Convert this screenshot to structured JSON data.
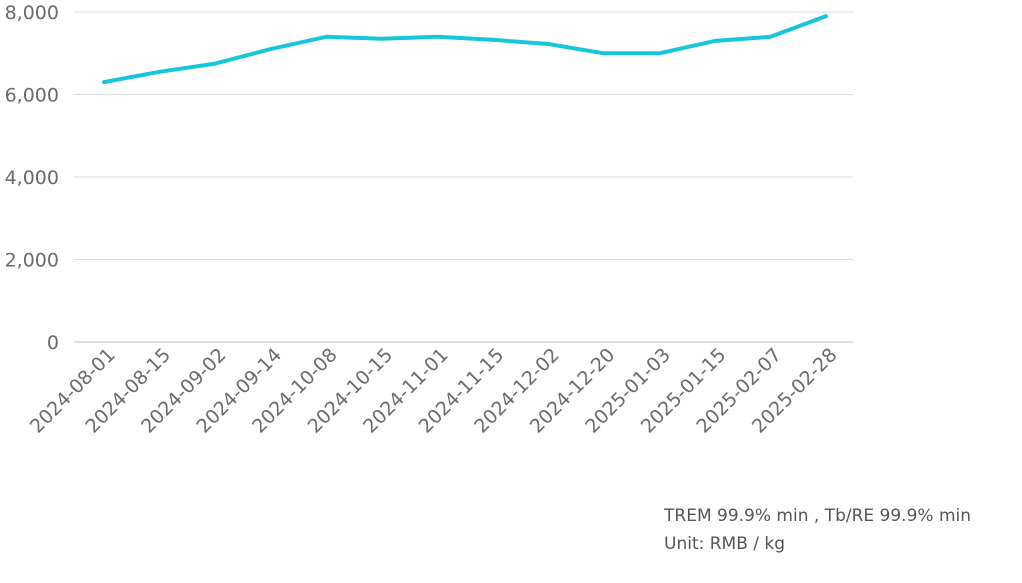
{
  "chart_data": {
    "type": "line",
    "title": "",
    "xlabel": "",
    "ylabel": "",
    "categories": [
      "2024-08-01",
      "2024-08-15",
      "2024-09-02",
      "2024-09-14",
      "2024-10-08",
      "2024-10-15",
      "2024-11-01",
      "2024-11-15",
      "2024-12-02",
      "2024-12-20",
      "2025-01-03",
      "2025-01-15",
      "2025-02-07",
      "2025-02-28"
    ],
    "series": [
      {
        "values": [
          6300,
          6550,
          6750,
          7100,
          7400,
          7350,
          7400,
          7325,
          7225,
          7000,
          7000,
          7300,
          7400,
          7900
        ],
        "color": "#16c6dc"
      }
    ],
    "ylim": [
      0,
      8000
    ],
    "yticks": [
      0,
      2000,
      4000,
      6000,
      8000
    ],
    "ytick_labels": [
      "0",
      "2,000",
      "4,000",
      "6,000",
      "8,000"
    ],
    "grid": true,
    "legend": "none"
  },
  "notes": {
    "line1": "TREM 99.9% min , Tb/RE 99.9% min",
    "line2": "Unit: RMB / kg"
  }
}
